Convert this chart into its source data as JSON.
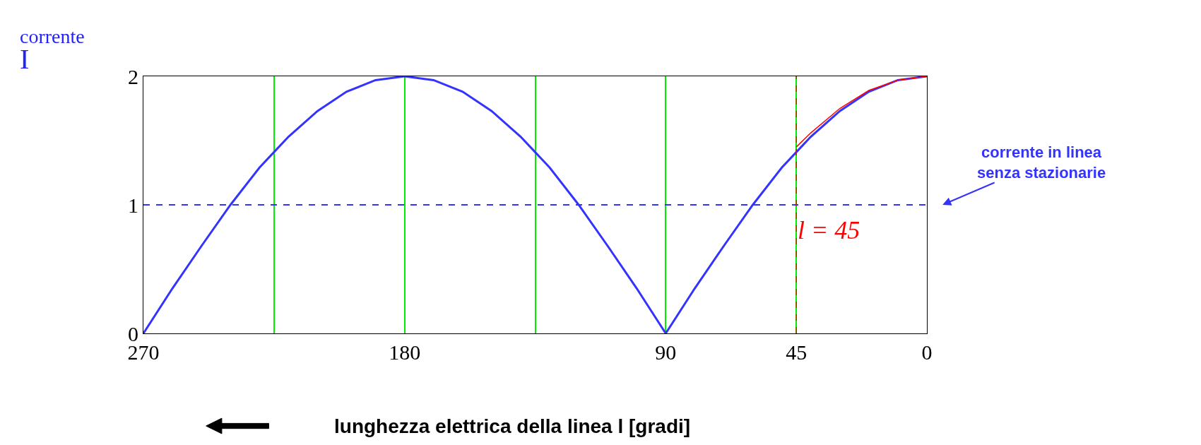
{
  "chart_data": {
    "type": "line",
    "ylabel": "corrente I",
    "xlabel": "lunghezza elettrica della linea l [gradi]",
    "xlim": [
      270,
      0
    ],
    "ylim": [
      0,
      2
    ],
    "xticks": [
      270,
      {
        "value": 225,
        "label": null
      },
      180,
      {
        "value": 135,
        "label": null
      },
      90,
      45,
      0
    ],
    "yticks": [
      0,
      1,
      2
    ],
    "grid": "x",
    "series": [
      {
        "color": "#3333ff",
        "x": [
          0,
          10,
          20,
          30,
          40,
          45,
          50,
          60,
          70,
          80,
          90,
          100,
          110,
          120,
          130,
          135,
          140,
          150,
          160,
          170,
          180,
          190,
          200,
          210,
          220,
          225,
          230,
          240,
          250,
          260,
          270
        ],
        "values": [
          2,
          1.97,
          1.88,
          1.73,
          1.53,
          1.41,
          1.29,
          1.0,
          0.68,
          0.35,
          0,
          0.35,
          0.68,
          1.0,
          1.29,
          1.41,
          1.53,
          1.73,
          1.88,
          1.97,
          2,
          1.97,
          1.88,
          1.73,
          1.53,
          1.41,
          1.29,
          1.0,
          0.68,
          0.35,
          0
        ]
      },
      {
        "color": "#ff0000",
        "x": [
          0,
          10,
          20,
          30,
          40,
          45
        ],
        "values": [
          2,
          1.97,
          1.89,
          1.75,
          1.56,
          1.45
        ]
      }
    ],
    "ref_lines": [
      {
        "axis": "y",
        "value": 1,
        "label": "corrente in linea senza stazionarie",
        "color": "#3333ff",
        "line_style": "dashed"
      },
      {
        "axis": "x",
        "value": 45,
        "label": "l = 45",
        "color": "#ff0000",
        "line_style": "dashed"
      }
    ]
  }
}
